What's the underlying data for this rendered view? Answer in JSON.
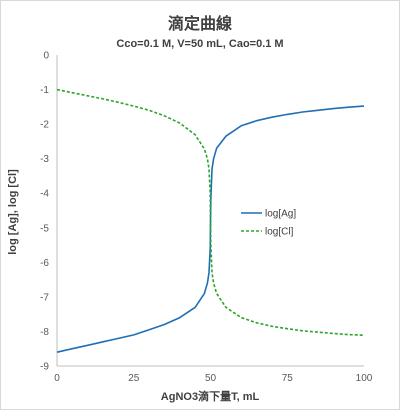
{
  "chart_data": {
    "type": "line",
    "title": "滴定曲線",
    "subtitle": "Cco=0.1 M, V=50 mL, Cao=0.1 M",
    "xlabel": "AgNO3滴下量T, mL",
    "ylabel": "log [Ag], log [Cl]",
    "xlim": [
      0,
      100
    ],
    "ylim": [
      -9,
      0
    ],
    "xticks": [
      0,
      25,
      50,
      75,
      100
    ],
    "yticks": [
      0,
      -1,
      -2,
      -3,
      -4,
      -5,
      -6,
      -7,
      -8,
      -9
    ],
    "grid": false,
    "legend_position": "right",
    "series": [
      {
        "name": "log[Ag]",
        "color": "#1f6fb5",
        "style": "solid",
        "x": [
          0,
          5,
          10,
          15,
          20,
          25,
          30,
          35,
          40,
          45,
          48,
          49,
          49.5,
          49.9,
          50,
          50.1,
          50.5,
          51,
          52,
          55,
          60,
          65,
          70,
          75,
          80,
          85,
          90,
          95,
          100
        ],
        "y": [
          -8.6,
          -8.5,
          -8.4,
          -8.3,
          -8.2,
          -8.1,
          -7.95,
          -7.8,
          -7.6,
          -7.3,
          -6.9,
          -6.6,
          -6.3,
          -5.6,
          -4.9,
          -4.2,
          -3.3,
          -3.0,
          -2.7,
          -2.35,
          -2.05,
          -1.9,
          -1.8,
          -1.72,
          -1.65,
          -1.6,
          -1.55,
          -1.51,
          -1.48
        ]
      },
      {
        "name": "log[Cl]",
        "color": "#2aa52a",
        "style": "dashed",
        "x": [
          0,
          5,
          10,
          15,
          20,
          25,
          30,
          35,
          40,
          45,
          48,
          49,
          49.5,
          49.9,
          50,
          50.1,
          50.5,
          51,
          52,
          55,
          60,
          65,
          70,
          75,
          80,
          85,
          90,
          95,
          100
        ],
        "y": [
          -1.0,
          -1.09,
          -1.18,
          -1.27,
          -1.37,
          -1.48,
          -1.6,
          -1.76,
          -1.97,
          -2.31,
          -2.72,
          -3.0,
          -3.3,
          -4.0,
          -4.8,
          -5.45,
          -6.3,
          -6.6,
          -6.9,
          -7.3,
          -7.6,
          -7.75,
          -7.85,
          -7.92,
          -7.98,
          -8.02,
          -8.06,
          -8.09,
          -8.11
        ]
      }
    ]
  }
}
